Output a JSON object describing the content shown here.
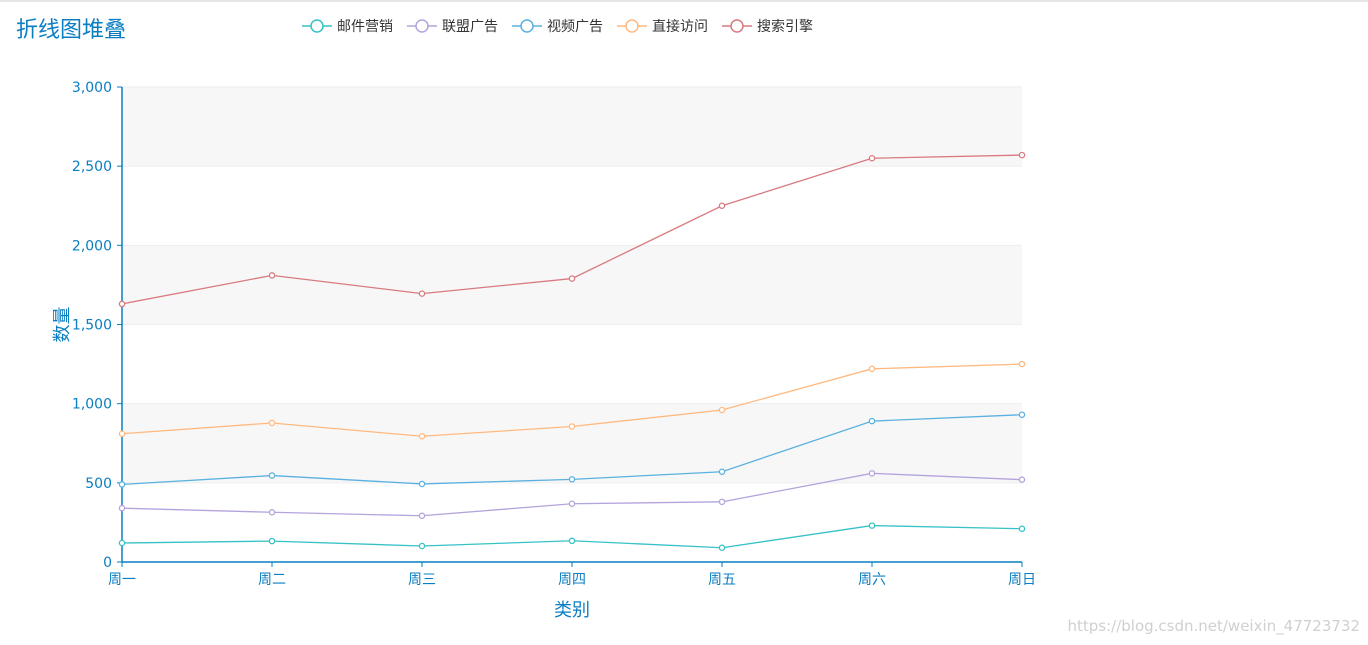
{
  "page": {
    "title": "折线图堆叠",
    "watermark": "https://blog.csdn.net/weixin_47723732"
  },
  "legend": {
    "position": "top",
    "items": [
      {
        "name": "邮件营销",
        "color": "#37c2c6"
      },
      {
        "name": "联盟广告",
        "color": "#b4a4dc"
      },
      {
        "name": "视频广告",
        "color": "#5ab1e0"
      },
      {
        "name": "直接访问",
        "color": "#ffb980"
      },
      {
        "name": "搜索引擎",
        "color": "#d87a80"
      }
    ]
  },
  "chart_data": {
    "type": "line",
    "stacked": true,
    "title": "折线图堆叠",
    "xlabel": "类别",
    "ylabel": "数量",
    "categories": [
      "周一",
      "周二",
      "周三",
      "周四",
      "周五",
      "周六",
      "周日"
    ],
    "ylim": [
      0,
      3000
    ],
    "yticks": [
      0,
      500,
      1000,
      1500,
      2000,
      2500,
      3000
    ],
    "ytick_labels": [
      "0",
      "500",
      "1,000",
      "1,500",
      "2,000",
      "2,500",
      "3,000"
    ],
    "grid": true,
    "split_area": true,
    "series": [
      {
        "name": "邮件营销",
        "color": "#37c2c6",
        "values": [
          120,
          132,
          101,
          134,
          90,
          230,
          210
        ]
      },
      {
        "name": "联盟广告",
        "color": "#b4a4dc",
        "values": [
          220,
          182,
          191,
          234,
          290,
          330,
          310
        ]
      },
      {
        "name": "视频广告",
        "color": "#5ab1e0",
        "values": [
          150,
          232,
          201,
          154,
          190,
          330,
          410
        ]
      },
      {
        "name": "直接访问",
        "color": "#ffb980",
        "values": [
          320,
          332,
          301,
          334,
          390,
          330,
          320
        ]
      },
      {
        "name": "搜索引擎",
        "color": "#d87a80",
        "values": [
          820,
          932,
          901,
          934,
          1290,
          1330,
          1320
        ]
      }
    ]
  }
}
